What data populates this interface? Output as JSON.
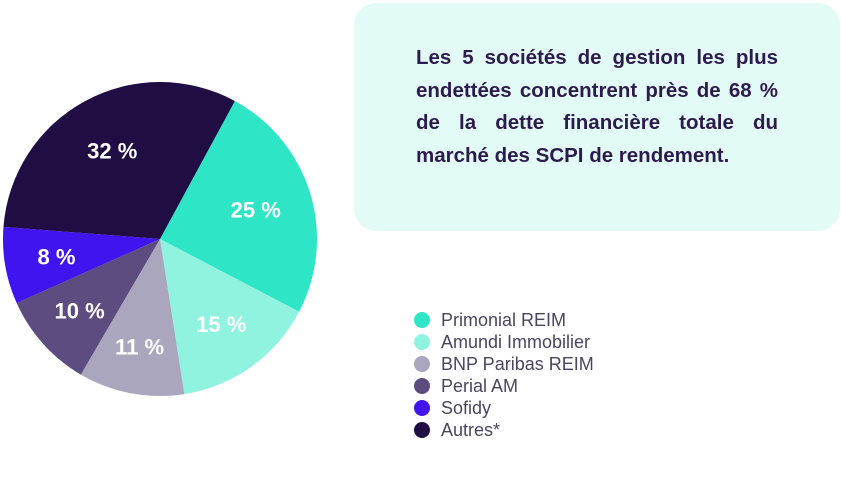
{
  "callout": {
    "text": "Les 5 sociétés de gestion les plus endettées concentrent près de 68 % de la dette financière totale du marché des SCPI de rendement."
  },
  "chart_data": {
    "type": "pie",
    "slices": [
      {
        "name": "Primonial REIM",
        "value": 25,
        "label": "25 %",
        "color": "#2ee6c5"
      },
      {
        "name": "Amundi Immobilier",
        "value": 15,
        "label": "15 %",
        "color": "#8ff3df"
      },
      {
        "name": "BNP Paribas REIM",
        "value": 11,
        "label": "11 %",
        "color": "#aaa6bd"
      },
      {
        "name": "Perial AM",
        "value": 10,
        "label": "10 %",
        "color": "#5d4c80"
      },
      {
        "name": "Sofidy",
        "value": 8,
        "label": "8 %",
        "color": "#3f14ee"
      },
      {
        "name": "Autres*",
        "value": 32,
        "label": "32 %",
        "color": "#1f0d44"
      }
    ],
    "legend_position": "right"
  }
}
